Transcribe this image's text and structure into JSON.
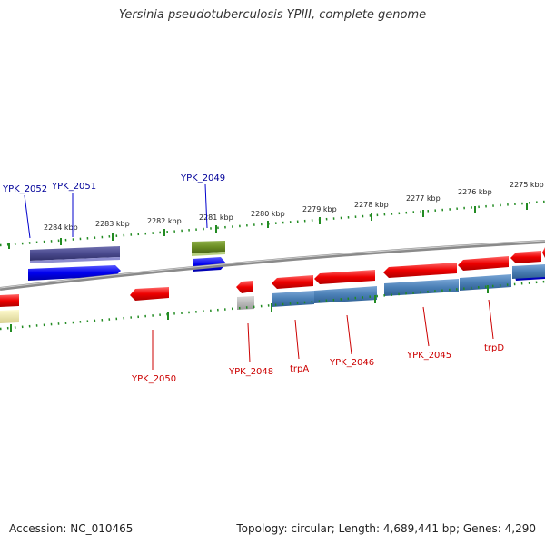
{
  "title": "Yersinia pseudotuberculosis YPIII, complete genome",
  "accession_label": "Accession: NC_010465",
  "summary_label": "Topology: circular; Length: 4,689,441 bp; Genes: 4,290",
  "ticks": [
    "2284 kbp",
    "2283 kbp",
    "2282 kbp",
    "2281 kbp",
    "2280 kbp",
    "2279 kbp",
    "2278 kbp",
    "2277 kbp",
    "2276 kbp",
    "2275 kbp"
  ],
  "genes": {
    "ypk_2052": "YPK_2052",
    "ypk_2051": "YPK_2051",
    "ypk_2049": "YPK_2049",
    "ypk_2050": "YPK_2050",
    "ypk_2048": "YPK_2048",
    "trpa": "trpA",
    "ypk_2046": "YPK_2046",
    "ypk_2045": "YPK_2045",
    "trpd": "trpD"
  },
  "colors": {
    "forward_gene": "#0000ee",
    "reverse_gene": "#ee0000",
    "product_blue": "#4a7fb5",
    "product_navy": "#4a4a8e",
    "product_olive": "#6b8e23",
    "product_gray": "#b0b0b0",
    "product_yellow": "#eee8aa",
    "tick": "#228b22",
    "backbone": "#808080",
    "label_forward": "#000099",
    "label_reverse": "#cc0000"
  }
}
